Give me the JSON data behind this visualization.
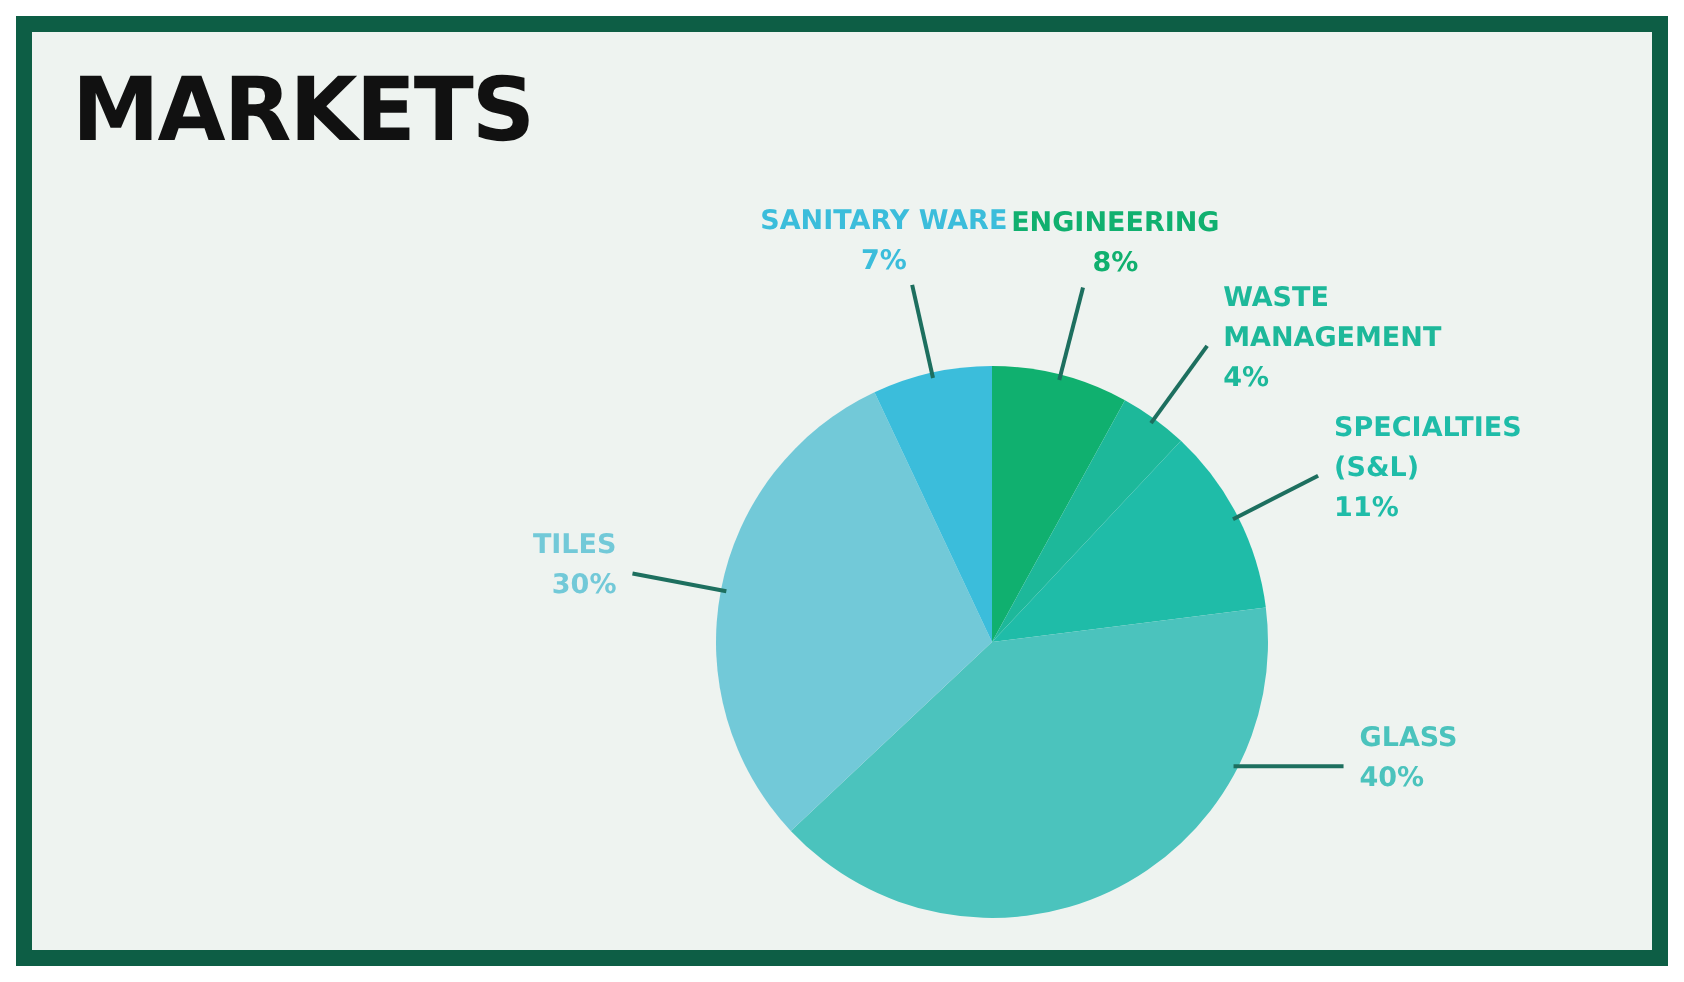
{
  "chart_data": {
    "type": "pie",
    "title": "MARKETS",
    "categories": [
      "ENGINEERING",
      "WASTE MANAGEMENT",
      "SPECIALTIES (S&L)",
      "GLASS",
      "TILES",
      "SANITARY WARE"
    ],
    "values": [
      8,
      4,
      11,
      40,
      30,
      7
    ],
    "value_labels": [
      "8%",
      "4%",
      "11%",
      "40%",
      "30%",
      "7%"
    ],
    "colors": [
      "#10b06f",
      "#1db89a",
      "#1fbca8",
      "#4bc3bd",
      "#72c9d8",
      "#3bbddb"
    ],
    "legend": false
  }
}
